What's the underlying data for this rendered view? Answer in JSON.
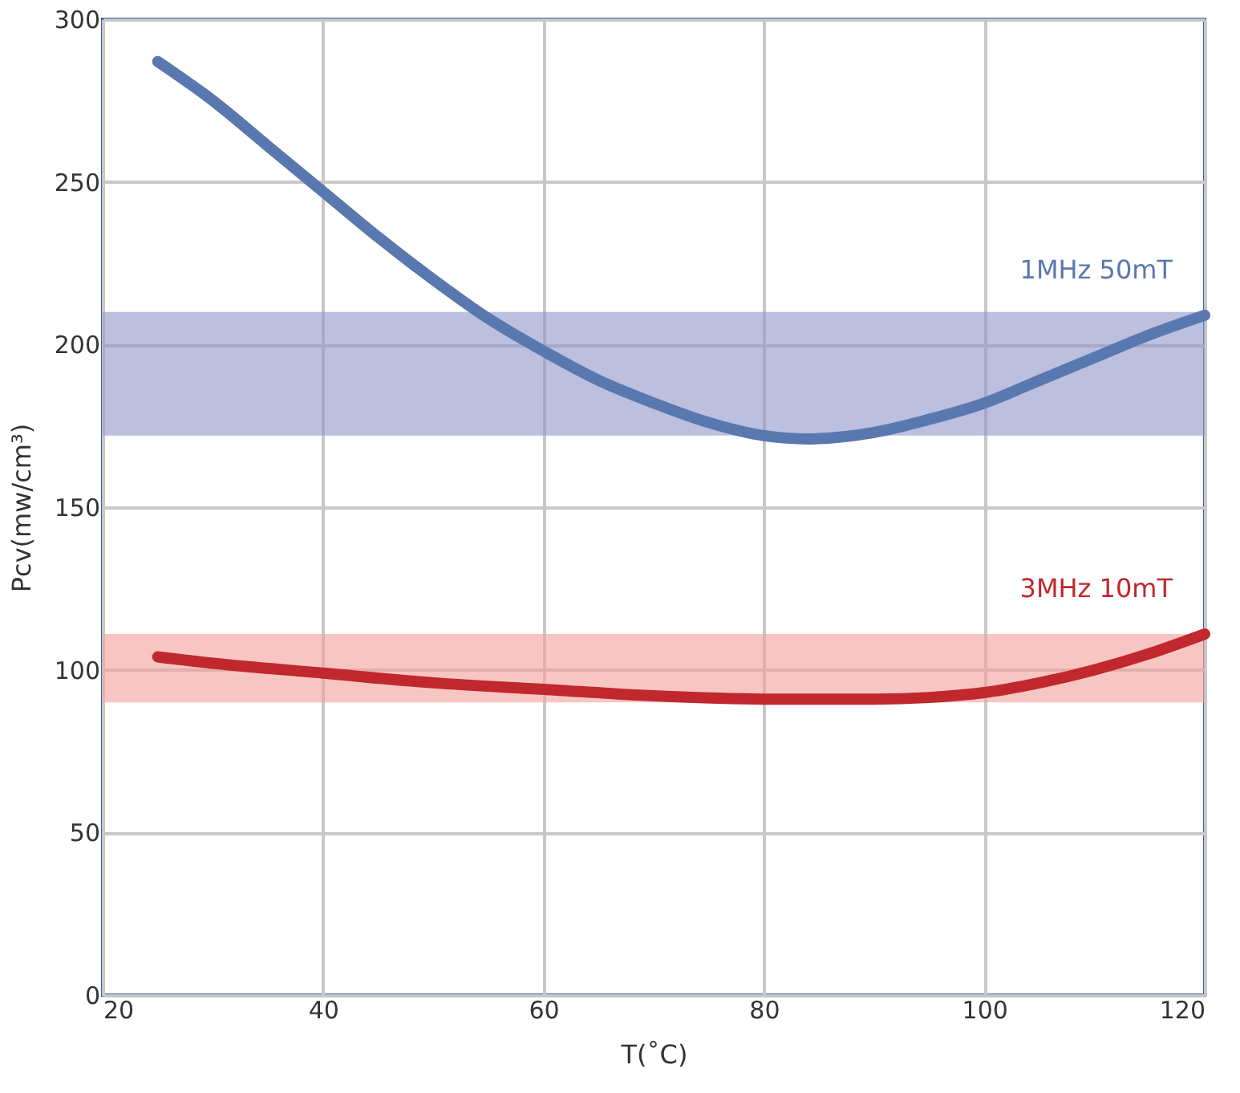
{
  "chart_data": {
    "type": "line",
    "xlabel": "T(˚C)",
    "ylabel": "Pcv(mw/cm³)",
    "xlim": [
      20,
      120
    ],
    "xticks": [
      20,
      40,
      60,
      80,
      100,
      120
    ],
    "ylim": [
      0,
      300
    ],
    "yticks": [
      0,
      50,
      100,
      150,
      200,
      250,
      300
    ],
    "grid": true,
    "line_style": "solid",
    "series": [
      {
        "name": "1MHz  50mT",
        "color": "#5a78b0",
        "x": [
          25,
          30,
          35,
          40,
          45,
          50,
          55,
          60,
          65,
          70,
          75,
          80,
          84,
          90,
          95,
          100,
          105,
          110,
          115,
          120
        ],
        "values": [
          287,
          275,
          261,
          247,
          233,
          220,
          208,
          198,
          189,
          182,
          176,
          172,
          171,
          173,
          177,
          182,
          189,
          196,
          203,
          209
        ]
      },
      {
        "name": "3MHz  10mT",
        "color": "#c0282d",
        "x": [
          25,
          30,
          40,
          50,
          60,
          70,
          80,
          90,
          95,
          100,
          105,
          110,
          115,
          120
        ],
        "values": [
          104,
          102,
          99,
          96,
          94,
          92,
          91,
          91,
          91.5,
          93,
          96,
          100,
          105,
          111
        ]
      }
    ],
    "bands": [
      {
        "axis": "y",
        "from": 172,
        "to": 210,
        "color": "#8f95c8"
      },
      {
        "axis": "y",
        "from": 90,
        "to": 111,
        "color": "#f4a09a"
      }
    ]
  }
}
